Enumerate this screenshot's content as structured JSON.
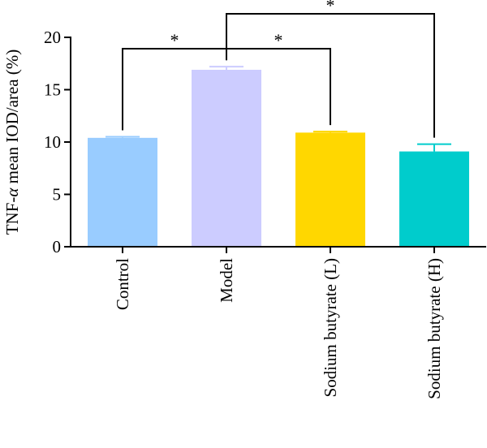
{
  "chart_data": {
    "type": "bar",
    "ylabel": "TNF-α mean IOD/area (%)",
    "ylabel_parts": {
      "prefix": "TNF-",
      "greek": "α",
      "suffix": " mean IOD/area (%)"
    },
    "ylim": [
      0,
      20
    ],
    "yticks": [
      0,
      5,
      10,
      15,
      20
    ],
    "categories": [
      "Control",
      "Model",
      "Sodium butyrate (L)",
      "Sodium butyrate (H)"
    ],
    "values": [
      10.4,
      16.9,
      10.9,
      9.1
    ],
    "errors": [
      0.1,
      0.3,
      0.1,
      0.7
    ],
    "colors": [
      "#99ccff",
      "#ccccff",
      "#ffd700",
      "#00cccc"
    ],
    "error_colors": [
      "#99ccff",
      "#ccccff",
      "#ffd700",
      "#00cccc"
    ],
    "significance": [
      {
        "from": 0,
        "to": 1,
        "label": "*"
      },
      {
        "from": 1,
        "to": 2,
        "label": "*"
      },
      {
        "from": 1,
        "to": 3,
        "label": "*"
      }
    ],
    "grid": false
  }
}
